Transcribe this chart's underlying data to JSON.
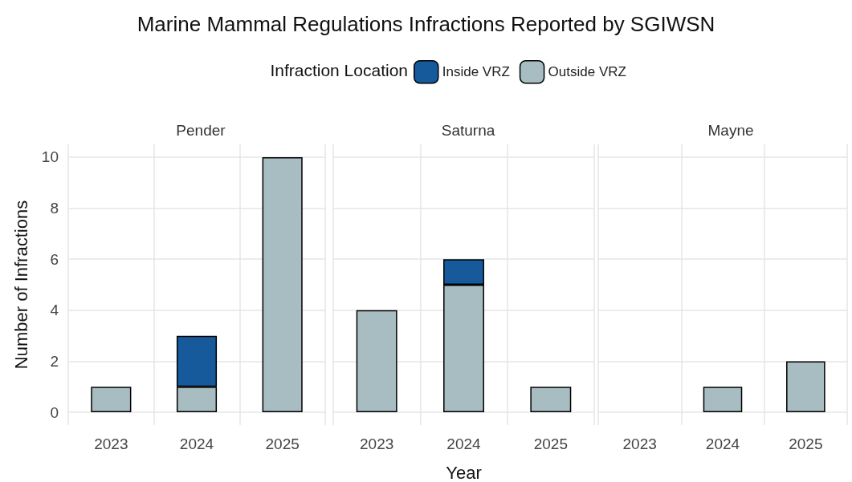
{
  "chart_data": [
    {
      "type": "bar",
      "title": "Marine Mammal Regulations Infractions Reported by SGIWSN",
      "subtitle": "Pender",
      "ylabel": "Number of Infractions",
      "legend_title": "Infraction Location",
      "legend": "top",
      "stacked": true,
      "grid": true,
      "categories": [
        "2023",
        "2024",
        "2025"
      ],
      "ylim": [
        -0.5,
        10.5
      ],
      "yticks": [
        0,
        2,
        4,
        6,
        8,
        10
      ],
      "series": [
        {
          "name": "Outside VRZ",
          "color": "#a8bdc2",
          "values": [
            1,
            1,
            10
          ]
        },
        {
          "name": "Inside VRZ",
          "color": "#165a9b",
          "values": [
            null,
            2,
            null
          ]
        }
      ]
    },
    {
      "type": "bar",
      "subtitle": "Saturna",
      "xlabel": "Year",
      "stacked": true,
      "grid": true,
      "tick_labels": "x",
      "categories": [
        "2023",
        "2024",
        "2025"
      ],
      "ylim": [
        -0.5,
        10.5
      ],
      "yticks": [
        0,
        2,
        4,
        6,
        8,
        10
      ],
      "series": [
        {
          "color": "#a8bdc2",
          "values": [
            4,
            5,
            1
          ]
        },
        {
          "color": "#165a9b",
          "values": [
            null,
            1,
            null
          ]
        }
      ]
    },
    {
      "type": "bar",
      "subtitle": "Mayne",
      "stacked": true,
      "grid": true,
      "tick_labels": "x",
      "categories": [
        "2023",
        "2024",
        "2025"
      ],
      "ylim": [
        -0.5,
        10.5
      ],
      "yticks": [
        0,
        2,
        4,
        6,
        8,
        10
      ],
      "series": [
        {
          "color": "#a8bdc2",
          "values": [
            null,
            1,
            2
          ]
        },
        {
          "color": "#165a9b",
          "values": [
            null,
            null,
            null
          ]
        }
      ]
    }
  ]
}
